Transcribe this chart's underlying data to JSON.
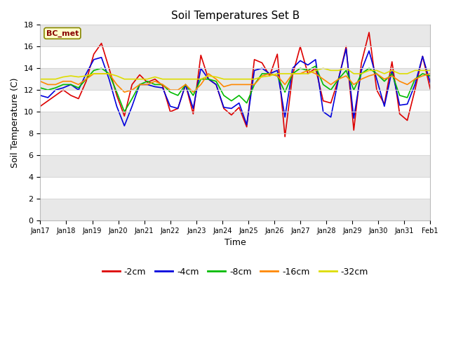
{
  "title": "Soil Temperatures Set B",
  "xlabel": "Time",
  "ylabel": "Soil Temperature (C)",
  "annotation": "BC_met",
  "ylim": [
    0,
    18
  ],
  "yticks": [
    0,
    2,
    4,
    6,
    8,
    10,
    12,
    14,
    16,
    18
  ],
  "x_labels": [
    "Jan 17",
    "Jan 18",
    "Jan 19",
    "Jan 20",
    "Jan 21",
    "Jan 22",
    "Jan 23",
    "Jan 24",
    "Jan 25",
    "Jan 26",
    "Jan 27",
    "Jan 28",
    "Jan 29",
    "Jan 30",
    "Jan 31",
    "Feb 1"
  ],
  "colors": {
    "-2cm": "#dd0000",
    "-4cm": "#0000dd",
    "-8cm": "#00bb00",
    "-16cm": "#ff8800",
    "-32cm": "#dddd00"
  },
  "legend_labels": [
    "-2cm",
    "-4cm",
    "-8cm",
    "-16cm",
    "-32cm"
  ],
  "figure_bg": "#ffffff",
  "plot_bg": "#ffffff",
  "grid_color": "#d8d8d8",
  "band_color": "#e8e8e8",
  "data": {
    "-2cm": [
      10.5,
      11.0,
      11.5,
      12.0,
      11.5,
      11.2,
      12.8,
      15.3,
      16.3,
      14.0,
      11.5,
      9.6,
      12.5,
      13.4,
      12.7,
      13.0,
      12.4,
      10.0,
      10.3,
      12.5,
      9.8,
      15.2,
      13.0,
      12.5,
      10.3,
      9.7,
      10.4,
      8.6,
      14.8,
      14.5,
      13.3,
      15.3,
      7.7,
      13.4,
      16.0,
      13.5,
      14.0,
      11.0,
      10.8,
      13.0,
      16.0,
      8.3,
      14.5,
      17.3,
      12.0,
      10.7,
      14.6,
      9.8,
      9.2,
      12.0,
      15.1,
      12.1
    ],
    "-4cm": [
      11.5,
      11.3,
      12.0,
      12.2,
      12.5,
      12.0,
      13.5,
      14.8,
      15.0,
      13.0,
      10.5,
      8.7,
      10.5,
      12.5,
      12.5,
      12.3,
      12.2,
      10.5,
      10.3,
      12.5,
      10.3,
      14.0,
      13.0,
      12.5,
      10.4,
      10.3,
      10.8,
      8.8,
      13.8,
      14.0,
      13.5,
      13.8,
      9.5,
      14.0,
      14.7,
      14.3,
      14.8,
      10.0,
      9.5,
      13.0,
      15.8,
      9.4,
      13.8,
      15.6,
      13.0,
      10.5,
      13.8,
      10.6,
      10.7,
      12.5,
      15.1,
      12.7
    ],
    "-8cm": [
      12.2,
      12.0,
      12.2,
      12.5,
      12.5,
      12.2,
      13.0,
      13.8,
      14.0,
      13.5,
      11.8,
      10.0,
      11.2,
      12.5,
      12.8,
      12.5,
      12.5,
      11.8,
      11.5,
      12.5,
      11.5,
      13.0,
      13.0,
      12.8,
      11.5,
      11.0,
      11.5,
      10.8,
      12.5,
      13.5,
      13.5,
      13.3,
      11.8,
      13.5,
      14.0,
      13.8,
      14.2,
      12.5,
      12.0,
      13.0,
      13.8,
      12.0,
      13.5,
      14.0,
      13.5,
      12.8,
      13.5,
      11.5,
      11.3,
      13.0,
      13.5,
      13.3
    ],
    "-16cm": [
      12.8,
      12.5,
      12.5,
      12.8,
      12.8,
      12.5,
      13.0,
      13.5,
      13.5,
      13.5,
      12.5,
      11.8,
      12.0,
      12.5,
      12.5,
      12.8,
      12.5,
      12.0,
      12.0,
      12.5,
      11.8,
      12.5,
      13.5,
      13.0,
      12.3,
      12.5,
      12.5,
      12.5,
      12.5,
      13.3,
      13.5,
      13.3,
      12.5,
      13.5,
      13.5,
      13.8,
      13.5,
      13.0,
      12.5,
      13.0,
      13.3,
      12.5,
      13.0,
      13.3,
      13.5,
      13.0,
      13.3,
      12.8,
      12.5,
      13.0,
      13.3,
      13.5
    ],
    "-32cm": [
      13.0,
      13.0,
      13.0,
      13.2,
      13.3,
      13.2,
      13.3,
      13.5,
      13.5,
      13.5,
      13.3,
      13.0,
      13.0,
      13.0,
      13.0,
      13.2,
      13.0,
      13.0,
      13.0,
      13.0,
      13.0,
      13.0,
      13.3,
      13.2,
      13.0,
      13.0,
      13.0,
      13.0,
      13.0,
      13.2,
      13.3,
      13.5,
      13.5,
      13.5,
      13.5,
      13.5,
      13.8,
      14.0,
      13.8,
      13.8,
      14.0,
      13.5,
      13.5,
      13.8,
      13.8,
      13.5,
      13.8,
      13.5,
      13.5,
      13.8,
      13.8,
      13.8
    ]
  }
}
